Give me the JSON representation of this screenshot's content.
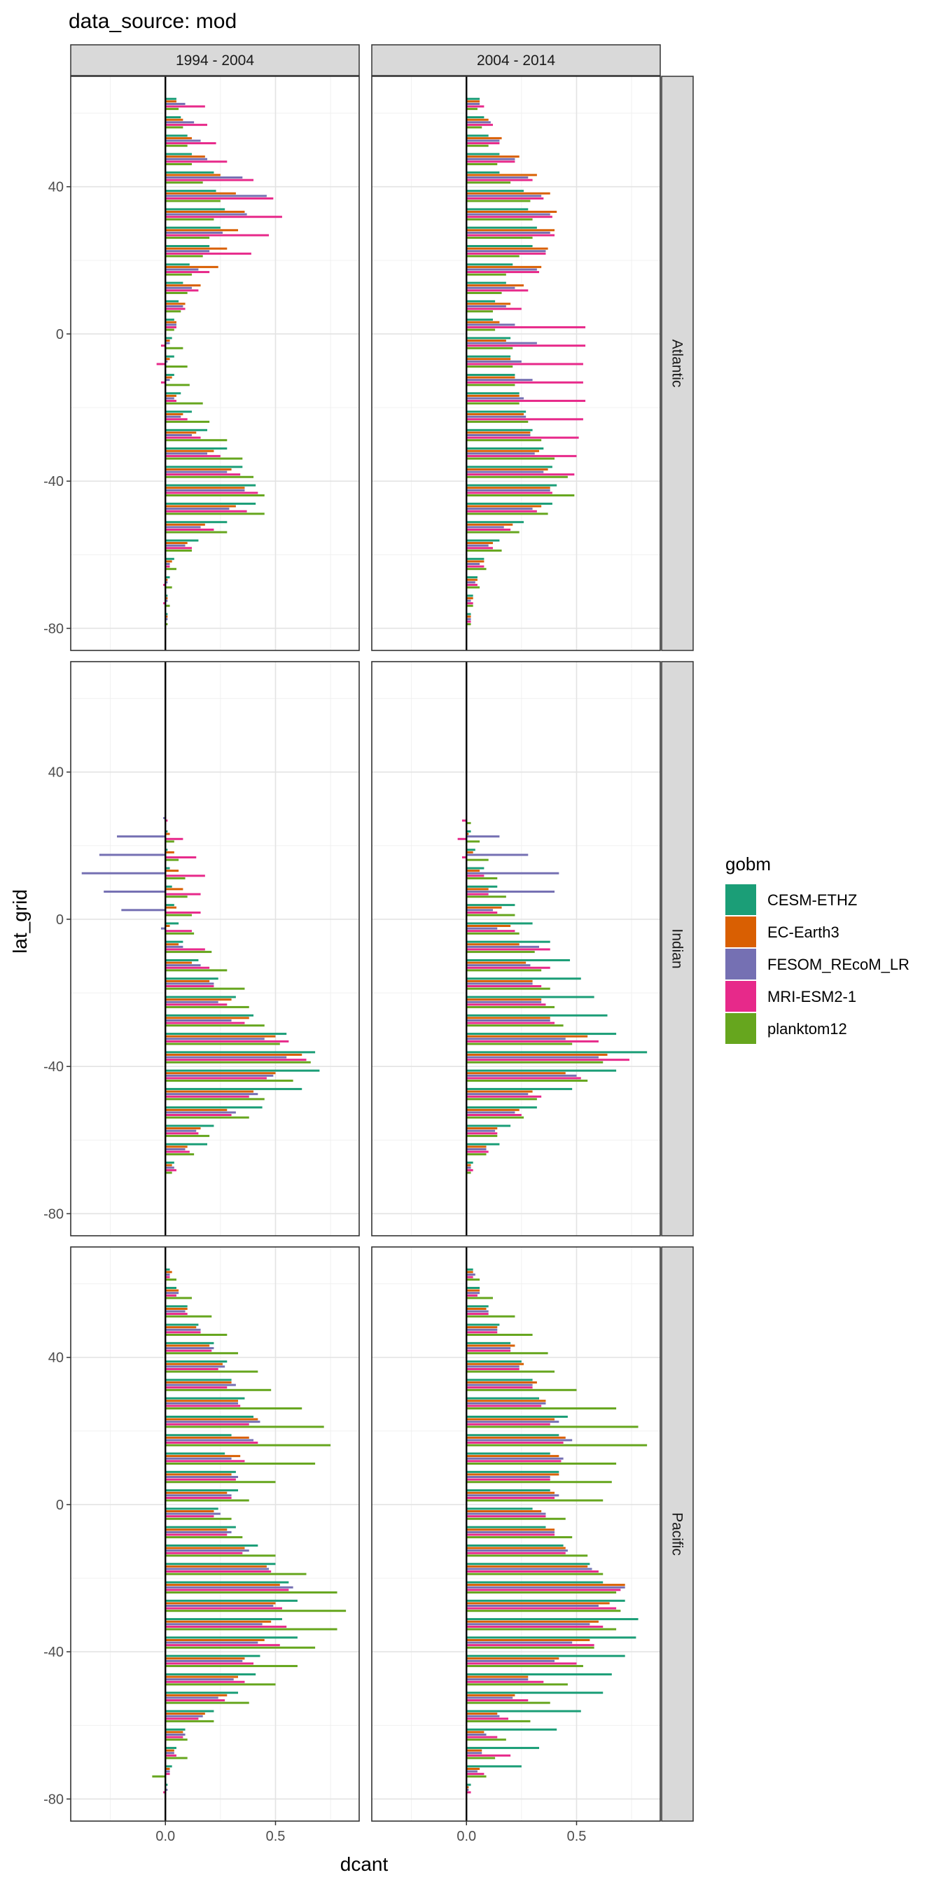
{
  "title": "data_source: mod",
  "chart_data": {
    "type": "bar",
    "orientation": "horizontal",
    "xlabel": "dcant",
    "ylabel": "lat_grid",
    "xlim": [
      -0.43,
      0.88
    ],
    "ylim": [
      -86,
      70
    ],
    "x_ticks": [
      0.0,
      0.5
    ],
    "x_tick_labels": [
      "0.0",
      "0.5"
    ],
    "y_ticks": [
      -80,
      -40,
      0,
      40
    ],
    "y_tick_labels": [
      "-80",
      "-40",
      "0",
      "40"
    ],
    "grid": true,
    "zero_line": true,
    "bin_width_deg": 5,
    "column_facets": [
      "1994 - 2004",
      "2004 - 2014"
    ],
    "row_facets": [
      "Atlantic",
      "Indian",
      "Pacific"
    ],
    "legend": {
      "title": "gobm",
      "position": "right",
      "entries": [
        "CESM-ETHZ",
        "EC-Earth3",
        "FESOM_REcoM_LR",
        "MRI-ESM2-1",
        "planktom12"
      ]
    },
    "colors": {
      "CESM-ETHZ": "#1b9e77",
      "EC-Earth3": "#d95f02",
      "FESOM_REcoM_LR": "#7570b3",
      "MRI-ESM2-1": "#e7298a",
      "planktom12": "#66a61e"
    },
    "series": [
      "CESM-ETHZ",
      "EC-Earth3",
      "FESOM_REcoM_LR",
      "MRI-ESM2-1",
      "planktom12"
    ],
    "panels": [
      {
        "ocean": "Atlantic",
        "period": "1994 - 2004",
        "lat": [
          -77.5,
          -72.5,
          -67.5,
          -62.5,
          -57.5,
          -52.5,
          -47.5,
          -42.5,
          -37.5,
          -32.5,
          -27.5,
          -22.5,
          -17.5,
          -12.5,
          -7.5,
          -2.5,
          2.5,
          7.5,
          12.5,
          17.5,
          22.5,
          27.5,
          32.5,
          37.5,
          42.5,
          47.5,
          52.5,
          57.5,
          62.5
        ],
        "values": [
          [
            0.01,
            0.01,
            0.02,
            0.04,
            0.15,
            0.28,
            0.41,
            0.41,
            0.35,
            0.28,
            0.19,
            0.12,
            0.07,
            0.04,
            0.04,
            0.03,
            0.04,
            0.06,
            0.08,
            0.11,
            0.2,
            0.25,
            0.27,
            0.23,
            0.22,
            0.12,
            0.1,
            0.07,
            0.05
          ],
          [
            0.01,
            0.01,
            0.01,
            0.03,
            0.1,
            0.18,
            0.32,
            0.36,
            0.3,
            0.22,
            0.14,
            0.08,
            0.05,
            0.03,
            0.02,
            0.02,
            0.05,
            0.09,
            0.16,
            0.24,
            0.28,
            0.33,
            0.36,
            0.32,
            0.25,
            0.18,
            0.12,
            0.08,
            0.05
          ],
          [
            0.01,
            0.01,
            0.01,
            0.02,
            0.09,
            0.16,
            0.29,
            0.36,
            0.28,
            0.19,
            0.12,
            0.07,
            0.04,
            0.02,
            0.01,
            0.02,
            0.05,
            0.08,
            0.12,
            0.15,
            0.2,
            0.26,
            0.37,
            0.46,
            0.35,
            0.19,
            0.16,
            0.13,
            0.09
          ],
          [
            0.0,
            -0.01,
            -0.01,
            0.02,
            0.12,
            0.22,
            0.37,
            0.42,
            0.34,
            0.25,
            0.16,
            0.1,
            0.05,
            -0.02,
            -0.04,
            -0.02,
            0.05,
            0.09,
            0.15,
            0.2,
            0.39,
            0.47,
            0.53,
            0.49,
            0.4,
            0.28,
            0.23,
            0.19,
            0.18
          ],
          [
            0.01,
            0.02,
            0.03,
            0.05,
            0.12,
            0.28,
            0.45,
            0.45,
            0.4,
            0.35,
            0.28,
            0.2,
            0.17,
            0.11,
            0.1,
            0.08,
            0.04,
            0.07,
            0.1,
            0.12,
            0.17,
            0.2,
            0.22,
            0.25,
            0.17,
            0.12,
            0.1,
            0.08,
            0.06
          ]
        ]
      },
      {
        "ocean": "Atlantic",
        "period": "2004 - 2014",
        "lat": [
          -77.5,
          -72.5,
          -67.5,
          -62.5,
          -57.5,
          -52.5,
          -47.5,
          -42.5,
          -37.5,
          -32.5,
          -27.5,
          -22.5,
          -17.5,
          -12.5,
          -7.5,
          -2.5,
          2.5,
          7.5,
          12.5,
          17.5,
          22.5,
          27.5,
          32.5,
          37.5,
          42.5,
          47.5,
          52.5,
          57.5,
          62.5
        ],
        "values": [
          [
            0.02,
            0.03,
            0.05,
            0.08,
            0.15,
            0.26,
            0.39,
            0.41,
            0.39,
            0.35,
            0.3,
            0.27,
            0.24,
            0.22,
            0.2,
            0.2,
            0.12,
            0.13,
            0.18,
            0.21,
            0.3,
            0.32,
            0.28,
            0.26,
            0.15,
            0.15,
            0.1,
            0.08,
            0.06
          ],
          [
            0.02,
            0.03,
            0.05,
            0.08,
            0.12,
            0.21,
            0.34,
            0.38,
            0.37,
            0.33,
            0.29,
            0.26,
            0.24,
            0.22,
            0.2,
            0.18,
            0.15,
            0.2,
            0.26,
            0.34,
            0.37,
            0.4,
            0.41,
            0.38,
            0.32,
            0.24,
            0.16,
            0.1,
            0.06
          ],
          [
            0.02,
            0.02,
            0.04,
            0.06,
            0.1,
            0.17,
            0.3,
            0.38,
            0.35,
            0.31,
            0.29,
            0.27,
            0.26,
            0.3,
            0.25,
            0.32,
            0.22,
            0.18,
            0.22,
            0.32,
            0.36,
            0.38,
            0.38,
            0.34,
            0.28,
            0.22,
            0.15,
            0.11,
            0.06
          ],
          [
            0.02,
            0.03,
            0.05,
            0.08,
            0.12,
            0.2,
            0.32,
            0.39,
            0.49,
            0.5,
            0.51,
            0.53,
            0.54,
            0.53,
            0.53,
            0.54,
            0.54,
            0.25,
            0.28,
            0.33,
            0.36,
            0.4,
            0.39,
            0.35,
            0.3,
            0.22,
            0.15,
            0.12,
            0.08
          ],
          [
            0.02,
            0.03,
            0.06,
            0.09,
            0.16,
            0.24,
            0.37,
            0.49,
            0.46,
            0.4,
            0.34,
            0.28,
            0.24,
            0.22,
            0.21,
            0.21,
            0.13,
            0.12,
            0.16,
            0.18,
            0.24,
            0.3,
            0.3,
            0.29,
            0.2,
            0.14,
            0.1,
            0.07,
            0.05
          ]
        ]
      },
      {
        "ocean": "Indian",
        "period": "1994 - 2004",
        "lat": [
          -67.5,
          -62.5,
          -57.5,
          -52.5,
          -47.5,
          -42.5,
          -37.5,
          -32.5,
          -27.5,
          -22.5,
          -17.5,
          -12.5,
          -7.5,
          -2.5,
          2.5,
          7.5,
          12.5,
          17.5,
          22.5,
          27.5
        ],
        "values": [
          [
            0.04,
            0.19,
            0.22,
            0.44,
            0.62,
            0.7,
            0.68,
            0.55,
            0.4,
            0.32,
            0.24,
            0.15,
            0.08,
            0.06,
            0.04,
            0.03,
            0.02,
            0.01,
            0.01,
            0.0
          ],
          [
            0.03,
            0.1,
            0.16,
            0.28,
            0.4,
            0.5,
            0.62,
            0.5,
            0.38,
            0.3,
            0.2,
            0.12,
            0.06,
            0.02,
            0.05,
            0.08,
            0.06,
            0.04,
            0.02,
            0.0
          ],
          [
            0.04,
            0.09,
            0.14,
            0.32,
            0.42,
            0.49,
            0.55,
            0.45,
            0.3,
            0.24,
            0.22,
            0.16,
            0.08,
            -0.02,
            -0.2,
            -0.28,
            -0.38,
            -0.3,
            -0.22,
            -0.01
          ],
          [
            0.05,
            0.11,
            0.15,
            0.3,
            0.38,
            0.46,
            0.64,
            0.56,
            0.36,
            0.28,
            0.22,
            0.2,
            0.18,
            0.12,
            0.16,
            0.16,
            0.18,
            0.14,
            0.08,
            0.01
          ],
          [
            0.03,
            0.13,
            0.2,
            0.38,
            0.45,
            0.58,
            0.66,
            0.52,
            0.45,
            0.38,
            0.36,
            0.28,
            0.21,
            0.13,
            0.12,
            0.1,
            0.09,
            0.06,
            0.04,
            0.0
          ]
        ]
      },
      {
        "ocean": "Indian",
        "period": "2004 - 2014",
        "lat": [
          -67.5,
          -62.5,
          -57.5,
          -52.5,
          -47.5,
          -42.5,
          -37.5,
          -32.5,
          -27.5,
          -22.5,
          -17.5,
          -12.5,
          -7.5,
          -2.5,
          2.5,
          7.5,
          12.5,
          17.5,
          22.5,
          27.5
        ],
        "values": [
          [
            0.03,
            0.15,
            0.2,
            0.32,
            0.48,
            0.68,
            0.82,
            0.68,
            0.64,
            0.58,
            0.52,
            0.47,
            0.38,
            0.3,
            0.22,
            0.14,
            0.08,
            0.04,
            0.02,
            0.0
          ],
          [
            0.02,
            0.09,
            0.14,
            0.24,
            0.3,
            0.45,
            0.64,
            0.55,
            0.38,
            0.34,
            0.3,
            0.27,
            0.24,
            0.2,
            0.16,
            0.1,
            0.06,
            0.03,
            0.01,
            0.0
          ],
          [
            0.02,
            0.09,
            0.13,
            0.22,
            0.28,
            0.5,
            0.6,
            0.45,
            0.38,
            0.34,
            0.3,
            0.29,
            0.33,
            0.14,
            0.12,
            0.4,
            0.42,
            0.28,
            0.15,
            0.0
          ],
          [
            0.03,
            0.1,
            0.14,
            0.25,
            0.34,
            0.52,
            0.74,
            0.6,
            0.4,
            0.36,
            0.34,
            0.38,
            0.38,
            0.22,
            0.14,
            0.1,
            0.08,
            -0.02,
            -0.04,
            -0.02
          ],
          [
            0.02,
            0.09,
            0.14,
            0.26,
            0.32,
            0.55,
            0.62,
            0.48,
            0.44,
            0.4,
            0.38,
            0.34,
            0.31,
            0.24,
            0.22,
            0.18,
            0.14,
            0.1,
            0.06,
            0.02
          ]
        ]
      },
      {
        "ocean": "Pacific",
        "period": "1994 - 2004",
        "lat": [
          -77.5,
          -72.5,
          -67.5,
          -62.5,
          -57.5,
          -52.5,
          -47.5,
          -42.5,
          -37.5,
          -32.5,
          -27.5,
          -22.5,
          -17.5,
          -12.5,
          -7.5,
          -2.5,
          2.5,
          7.5,
          12.5,
          17.5,
          22.5,
          27.5,
          32.5,
          37.5,
          42.5,
          47.5,
          52.5,
          57.5,
          62.5
        ],
        "values": [
          [
            0.01,
            0.03,
            0.05,
            0.09,
            0.22,
            0.33,
            0.41,
            0.43,
            0.6,
            0.53,
            0.6,
            0.56,
            0.5,
            0.42,
            0.32,
            0.24,
            0.33,
            0.32,
            0.27,
            0.3,
            0.4,
            0.36,
            0.3,
            0.28,
            0.22,
            0.15,
            0.1,
            0.05,
            0.02
          ],
          [
            0.0,
            0.02,
            0.04,
            0.08,
            0.18,
            0.28,
            0.33,
            0.36,
            0.45,
            0.48,
            0.5,
            0.52,
            0.46,
            0.36,
            0.28,
            0.22,
            0.28,
            0.3,
            0.34,
            0.38,
            0.42,
            0.33,
            0.3,
            0.26,
            0.2,
            0.14,
            0.1,
            0.06,
            0.03
          ],
          [
            0.01,
            0.02,
            0.04,
            0.09,
            0.17,
            0.24,
            0.31,
            0.35,
            0.42,
            0.44,
            0.49,
            0.58,
            0.47,
            0.38,
            0.3,
            0.25,
            0.3,
            0.33,
            0.3,
            0.4,
            0.43,
            0.33,
            0.32,
            0.27,
            0.22,
            0.16,
            0.09,
            0.06,
            0.02
          ],
          [
            -0.01,
            0.02,
            0.05,
            0.08,
            0.15,
            0.27,
            0.36,
            0.4,
            0.52,
            0.55,
            0.53,
            0.56,
            0.48,
            0.35,
            0.28,
            0.22,
            0.3,
            0.32,
            0.36,
            0.42,
            0.38,
            0.34,
            0.28,
            0.24,
            0.21,
            0.16,
            0.1,
            0.05,
            0.02
          ],
          [
            0.0,
            -0.06,
            0.1,
            0.1,
            0.22,
            0.38,
            0.5,
            0.6,
            0.68,
            0.78,
            0.82,
            0.78,
            0.64,
            0.5,
            0.35,
            0.3,
            0.38,
            0.5,
            0.68,
            0.75,
            0.72,
            0.62,
            0.48,
            0.42,
            0.33,
            0.28,
            0.21,
            0.12,
            0.05
          ]
        ]
      },
      {
        "ocean": "Pacific",
        "period": "2004 - 2014",
        "lat": [
          -77.5,
          -72.5,
          -67.5,
          -62.5,
          -57.5,
          -52.5,
          -47.5,
          -42.5,
          -37.5,
          -32.5,
          -27.5,
          -22.5,
          -17.5,
          -12.5,
          -7.5,
          -2.5,
          2.5,
          7.5,
          12.5,
          17.5,
          22.5,
          27.5,
          32.5,
          37.5,
          42.5,
          47.5,
          52.5,
          57.5,
          62.5
        ],
        "values": [
          [
            0.02,
            0.25,
            0.33,
            0.41,
            0.52,
            0.62,
            0.66,
            0.72,
            0.77,
            0.78,
            0.72,
            0.62,
            0.56,
            0.44,
            0.36,
            0.3,
            0.38,
            0.42,
            0.38,
            0.42,
            0.46,
            0.33,
            0.3,
            0.25,
            0.2,
            0.15,
            0.1,
            0.06,
            0.03
          ],
          [
            0.01,
            0.06,
            0.07,
            0.08,
            0.14,
            0.22,
            0.28,
            0.42,
            0.56,
            0.6,
            0.65,
            0.72,
            0.55,
            0.45,
            0.4,
            0.34,
            0.4,
            0.42,
            0.42,
            0.45,
            0.4,
            0.36,
            0.32,
            0.26,
            0.22,
            0.14,
            0.09,
            0.06,
            0.03
          ],
          [
            0.01,
            0.05,
            0.07,
            0.09,
            0.15,
            0.21,
            0.28,
            0.4,
            0.48,
            0.56,
            0.6,
            0.72,
            0.57,
            0.46,
            0.4,
            0.36,
            0.42,
            0.38,
            0.44,
            0.48,
            0.42,
            0.36,
            0.3,
            0.24,
            0.2,
            0.14,
            0.1,
            0.06,
            0.04
          ],
          [
            0.02,
            0.08,
            0.2,
            0.14,
            0.19,
            0.28,
            0.35,
            0.5,
            0.58,
            0.62,
            0.68,
            0.7,
            0.6,
            0.45,
            0.4,
            0.36,
            0.4,
            0.38,
            0.43,
            0.44,
            0.38,
            0.34,
            0.3,
            0.24,
            0.2,
            0.14,
            0.1,
            0.05,
            0.03
          ],
          [
            0.0,
            0.09,
            0.13,
            0.18,
            0.29,
            0.38,
            0.46,
            0.53,
            0.58,
            0.68,
            0.7,
            0.68,
            0.62,
            0.55,
            0.48,
            0.45,
            0.62,
            0.66,
            0.68,
            0.82,
            0.78,
            0.68,
            0.5,
            0.4,
            0.37,
            0.3,
            0.22,
            0.12,
            0.06
          ]
        ]
      }
    ]
  }
}
